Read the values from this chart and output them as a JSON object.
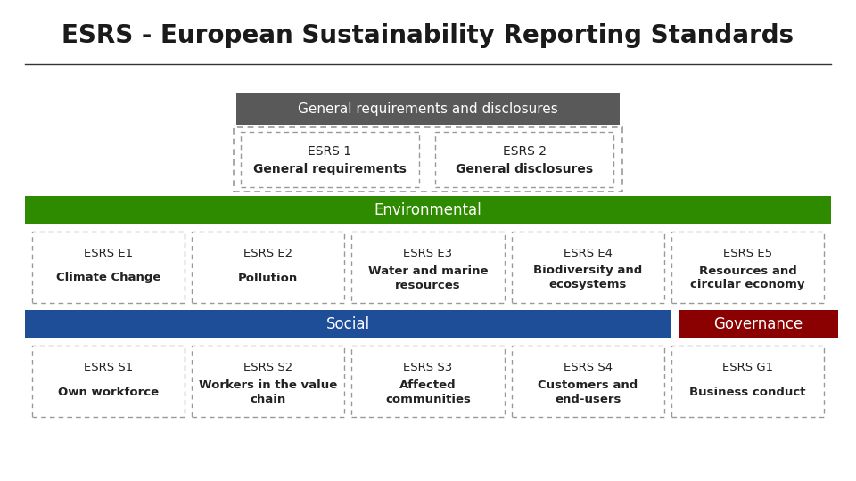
{
  "title": "ESRS - European Sustainability Reporting Standards",
  "title_fontsize": 20,
  "bg_color": "#ffffff",
  "general_box_color": "#595959",
  "general_box_text": "General requirements and disclosures",
  "general_box_text_color": "#ffffff",
  "general_items": [
    {
      "label": "ESRS 1",
      "sublabel": "General requirements"
    },
    {
      "label": "ESRS 2",
      "sublabel": "General disclosures"
    }
  ],
  "env_color": "#2e8b00",
  "env_label": "Environmental",
  "env_items": [
    {
      "label": "ESRS E1",
      "sublabel": "Climate Change"
    },
    {
      "label": "ESRS E2",
      "sublabel": "Pollution"
    },
    {
      "label": "ESRS E3",
      "sublabel": "Water and marine\nresources"
    },
    {
      "label": "ESRS E4",
      "sublabel": "Biodiversity and\necosystems"
    },
    {
      "label": "ESRS E5",
      "sublabel": "Resources and\ncircular economy"
    }
  ],
  "social_color": "#1f4e99",
  "social_label": "Social",
  "social_items": [
    {
      "label": "ESRS S1",
      "sublabel": "Own workforce"
    },
    {
      "label": "ESRS S2",
      "sublabel": "Workers in the value\nchain"
    },
    {
      "label": "ESRS S3",
      "sublabel": "Affected\ncommunities"
    },
    {
      "label": "ESRS S4",
      "sublabel": "Customers and\nend-users"
    }
  ],
  "gov_color": "#8b0000",
  "gov_label": "Governance",
  "gov_items": [
    {
      "label": "ESRS G1",
      "sublabel": "Business conduct"
    }
  ]
}
